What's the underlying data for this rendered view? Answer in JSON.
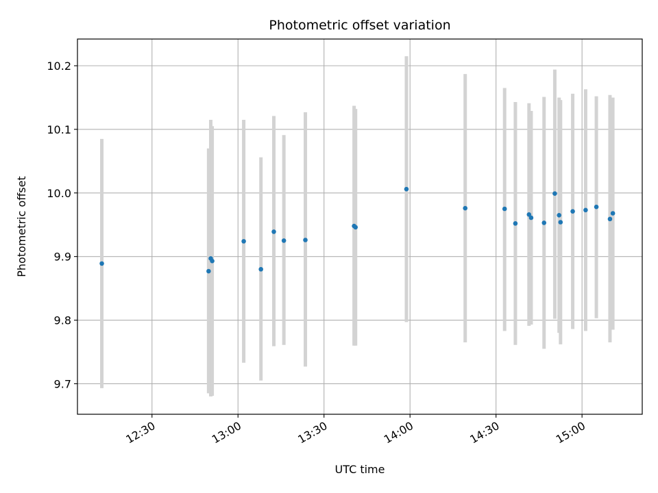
{
  "chart_data": {
    "type": "scatter",
    "title": "Photometric offset variation",
    "xlabel": "UTC time",
    "ylabel": "Photometric offset",
    "x_ticks": [
      "12:30",
      "13:00",
      "13:30",
      "14:00",
      "14:30",
      "15:00"
    ],
    "y_ticks": [
      "9.7",
      "9.8",
      "9.9",
      "10.0",
      "10.1",
      "10.2"
    ],
    "xlim": [
      "12:04",
      "15:21"
    ],
    "ylim": [
      9.652,
      10.242
    ],
    "grid": true,
    "colors": {
      "point": "#1f77b4",
      "error_bar": "#d3d3d3",
      "grid": "#b0b0b0"
    },
    "points": [
      {
        "x": "12:12:30",
        "y": 9.889,
        "ymin": 9.693,
        "ymax": 10.085
      },
      {
        "x": "12:49:45",
        "y": 9.877,
        "ymin": 9.685,
        "ymax": 10.07
      },
      {
        "x": "12:50:30",
        "y": 9.897,
        "ymin": 9.68,
        "ymax": 10.115
      },
      {
        "x": "12:51:00",
        "y": 9.893,
        "ymin": 9.681,
        "ymax": 10.105
      },
      {
        "x": "13:02:00",
        "y": 9.924,
        "ymin": 9.733,
        "ymax": 10.115
      },
      {
        "x": "13:08:00",
        "y": 9.88,
        "ymin": 9.705,
        "ymax": 10.056
      },
      {
        "x": "13:12:30",
        "y": 9.939,
        "ymin": 9.759,
        "ymax": 10.121
      },
      {
        "x": "13:16:00",
        "y": 9.925,
        "ymin": 9.761,
        "ymax": 10.091
      },
      {
        "x": "13:23:30",
        "y": 9.926,
        "ymin": 9.727,
        "ymax": 10.127
      },
      {
        "x": "13:40:30",
        "y": 9.948,
        "ymin": 9.76,
        "ymax": 10.137
      },
      {
        "x": "13:41:00",
        "y": 9.946,
        "ymin": 9.76,
        "ymax": 10.132
      },
      {
        "x": "13:58:45",
        "y": 10.006,
        "ymin": 9.797,
        "ymax": 10.215
      },
      {
        "x": "14:19:15",
        "y": 9.976,
        "ymin": 9.765,
        "ymax": 10.187
      },
      {
        "x": "14:33:00",
        "y": 9.975,
        "ymin": 9.783,
        "ymax": 10.165
      },
      {
        "x": "14:36:45",
        "y": 9.952,
        "ymin": 9.761,
        "ymax": 10.143
      },
      {
        "x": "14:41:30",
        "y": 9.966,
        "ymin": 9.791,
        "ymax": 10.141
      },
      {
        "x": "14:42:15",
        "y": 9.961,
        "ymin": 9.793,
        "ymax": 10.129
      },
      {
        "x": "14:46:45",
        "y": 9.953,
        "ymin": 9.755,
        "ymax": 10.151
      },
      {
        "x": "14:50:30",
        "y": 9.999,
        "ymin": 9.802,
        "ymax": 10.194
      },
      {
        "x": "14:52:00",
        "y": 9.965,
        "ymin": 9.78,
        "ymax": 10.15
      },
      {
        "x": "14:52:30",
        "y": 9.954,
        "ymin": 9.762,
        "ymax": 10.146
      },
      {
        "x": "14:56:45",
        "y": 9.971,
        "ymin": 9.786,
        "ymax": 10.156
      },
      {
        "x": "15:01:15",
        "y": 9.973,
        "ymin": 9.783,
        "ymax": 10.163
      },
      {
        "x": "15:05:00",
        "y": 9.978,
        "ymin": 9.803,
        "ymax": 10.152
      },
      {
        "x": "15:09:45",
        "y": 9.959,
        "ymin": 9.765,
        "ymax": 10.154
      },
      {
        "x": "15:10:45",
        "y": 9.968,
        "ymin": 9.785,
        "ymax": 10.15
      }
    ]
  }
}
